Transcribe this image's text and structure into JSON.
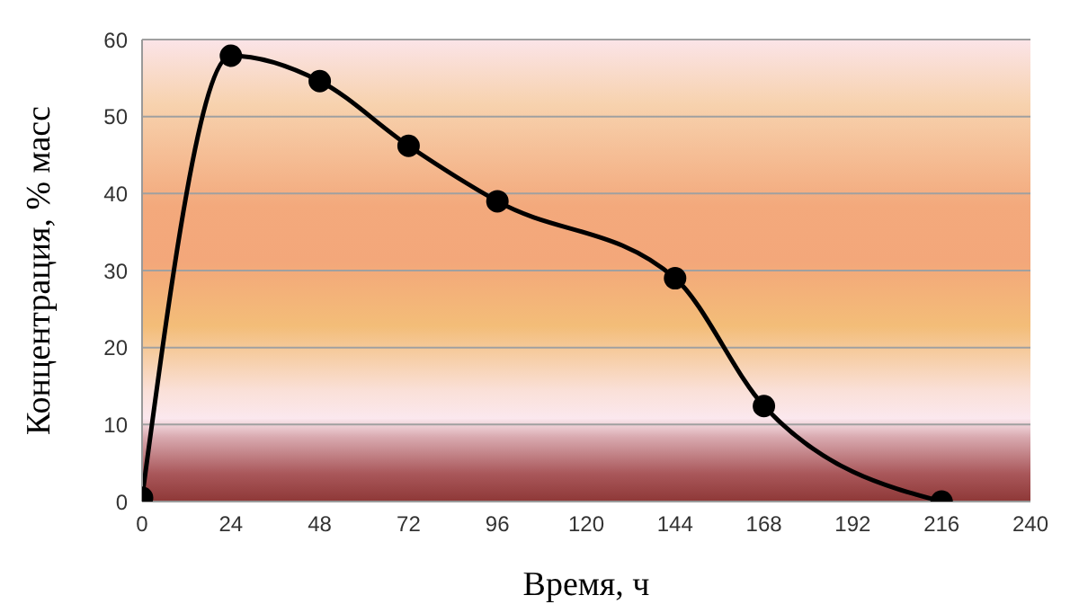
{
  "chart_data": {
    "type": "line",
    "xlabel": "Время, ч",
    "ylabel": "Концентрация, % масс",
    "x": [
      0,
      24,
      48,
      72,
      96,
      144,
      168,
      216
    ],
    "series": [
      {
        "color": "#000000",
        "values": [
          0.5,
          57.9,
          54.6,
          46.2,
          39,
          29,
          12.4,
          0
        ]
      }
    ],
    "xlim": [
      0,
      240
    ],
    "xticks": [
      0,
      24,
      48,
      72,
      96,
      120,
      144,
      168,
      192,
      216,
      240
    ],
    "ylim": [
      0,
      60
    ],
    "yticks": [
      0,
      10,
      20,
      30,
      40,
      50,
      60
    ],
    "grid": "y",
    "marker": "circle",
    "line_style": "solid",
    "legend": false
  }
}
